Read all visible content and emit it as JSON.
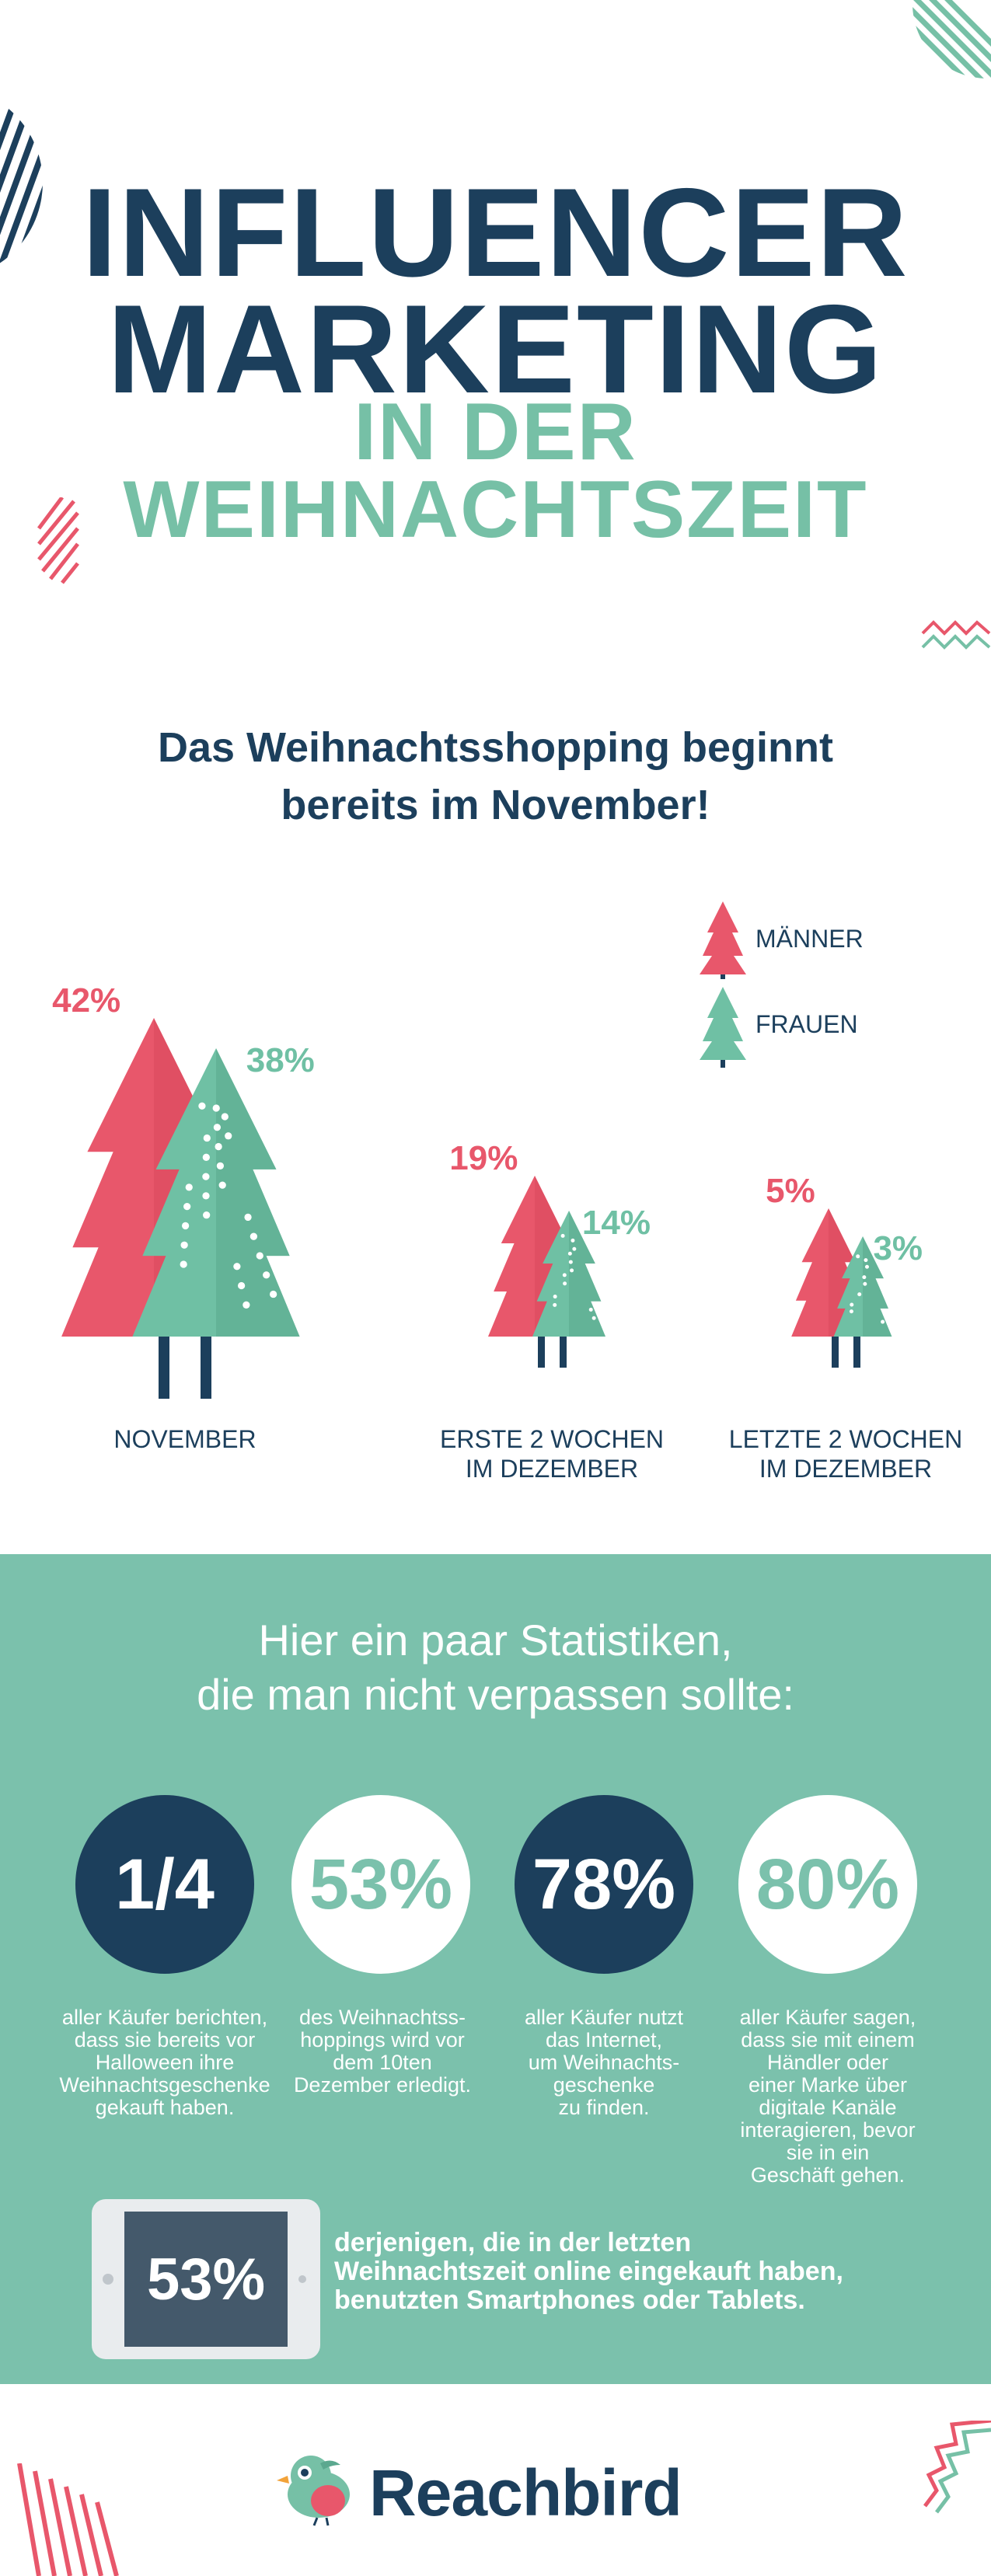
{
  "header": {
    "title_line1": "INFLUENCER",
    "title_line2": "MARKETING",
    "subtitle_line1": "IN DER",
    "subtitle_line2": "WEIHNACHTSZEIT"
  },
  "section1": {
    "heading_line1": "Das Weihnachtsshopping beginnt",
    "heading_line2": "bereits im November!"
  },
  "legend": {
    "men": "MÄNNER",
    "women": "FRAUEN"
  },
  "colors": {
    "navy": "#1c3f5c",
    "men_pink": "#e8576b",
    "women_green": "#6fc0a4",
    "band": "#7bc1ac"
  },
  "chart_data": {
    "type": "bar",
    "categories": [
      "NOVEMBER",
      "ERSTE 2 WOCHEN\nIM DEZEMBER",
      "LETZTE 2 WOCHEN\nIM DEZEMBER"
    ],
    "series": [
      {
        "name": "MÄNNER",
        "values": [
          42,
          19,
          5
        ],
        "labels": [
          "42%",
          "19%",
          "5%"
        ]
      },
      {
        "name": "FRAUEN",
        "values": [
          38,
          14,
          3
        ],
        "labels": [
          "38%",
          "14%",
          "3%"
        ]
      }
    ]
  },
  "stats": {
    "heading_line1": "Hier ein paar Statistiken,",
    "heading_line2": "die man nicht verpassen sollte:",
    "items": [
      {
        "value": "1/4",
        "text": "aller Käufer berichten,\ndass sie bereits vor\nHalloween ihre\nWeihnachtsgeschenke\ngekauft haben."
      },
      {
        "value": "53%",
        "text": "des Weihnachtss-\nhoppings wird vor\ndem 10ten\nDezember erledigt."
      },
      {
        "value": "78%",
        "text": "aller Käufer nutzt\ndas Internet,\num Weihnachts-\ngeschenke\nzu finden."
      },
      {
        "value": "80%",
        "text": "aller Käufer sagen,\ndass sie mit einem\nHändler oder\neiner Marke über\ndigitale Kanäle\ninteragieren, bevor\nsie in ein\nGeschäft gehen."
      }
    ],
    "tablet_value": "53%",
    "tablet_text": "derjenigen, die in der letzten\nWeihnachtszeit online eingekauft haben,\nbenutzten Smartphones oder Tablets."
  },
  "footer": {
    "brand": "Reachbird"
  }
}
